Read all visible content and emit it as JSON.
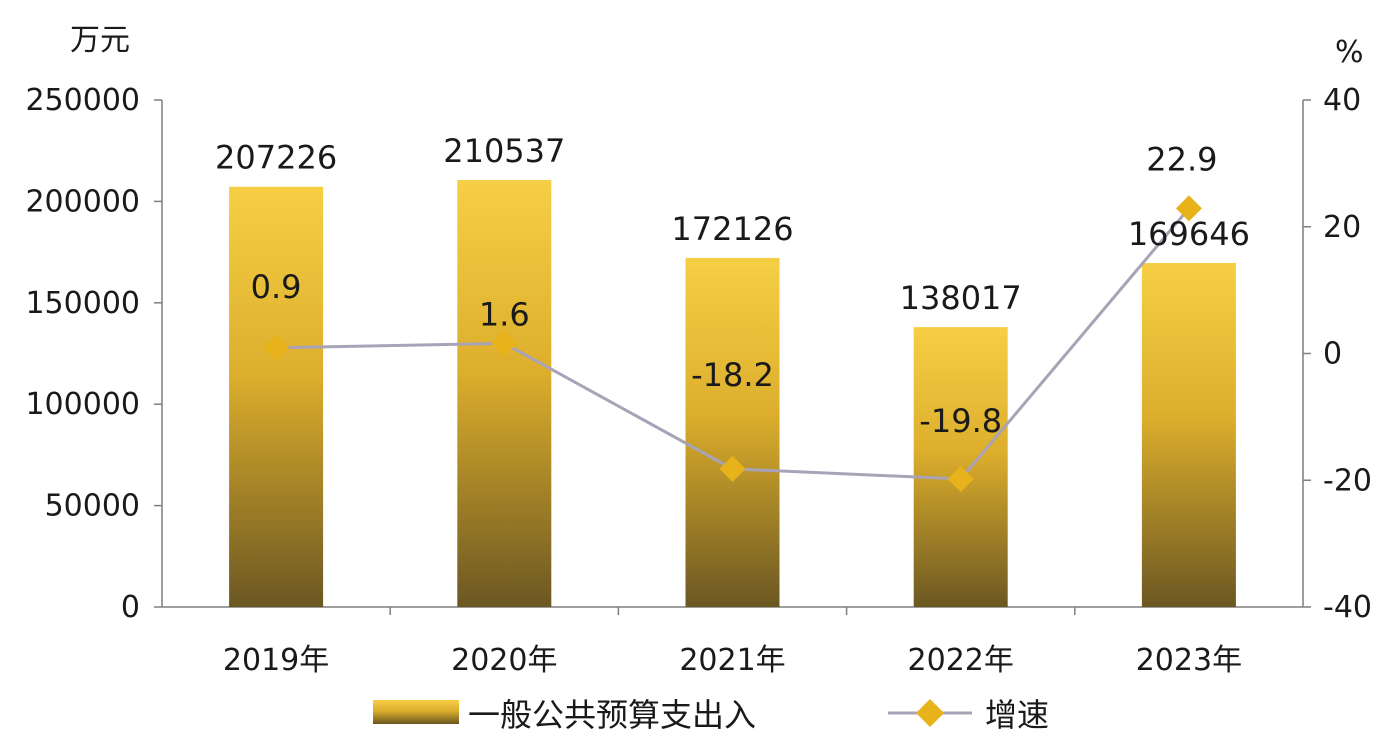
{
  "chart_data": {
    "type": "bar",
    "categories": [
      "2019年",
      "2020年",
      "2021年",
      "2022年",
      "2023年"
    ],
    "series": [
      {
        "name": "一般公共预算支出入",
        "type": "bar",
        "axis": "left",
        "values": [
          207226,
          210537,
          172126,
          138017,
          169646
        ],
        "labels": [
          "207226",
          "210537",
          "172126",
          "138017",
          "169646"
        ]
      },
      {
        "name": "增速",
        "type": "line",
        "axis": "right",
        "values": [
          0.9,
          1.6,
          -18.2,
          -19.8,
          22.9
        ],
        "labels": [
          "0.9",
          "1.6",
          "-18.2",
          "-19.8",
          "22.9"
        ]
      }
    ],
    "left_axis": {
      "unit": "万元",
      "min": 0,
      "max": 250000,
      "ticks": [
        "0",
        "50000",
        "100000",
        "150000",
        "200000",
        "250000"
      ]
    },
    "right_axis": {
      "unit": "%",
      "min": -40,
      "max": 40,
      "ticks": [
        "-40",
        "-20",
        "0",
        "20",
        "40"
      ]
    },
    "legend_position": "bottom",
    "grid": false,
    "colors": {
      "bar_top": "#f6cf45",
      "bar_mid": "#d9a827",
      "bar_bottom": "#6b5722",
      "line": "#a8a3b7",
      "marker": "#e8b21a",
      "axis": "#7f7f7f"
    }
  }
}
